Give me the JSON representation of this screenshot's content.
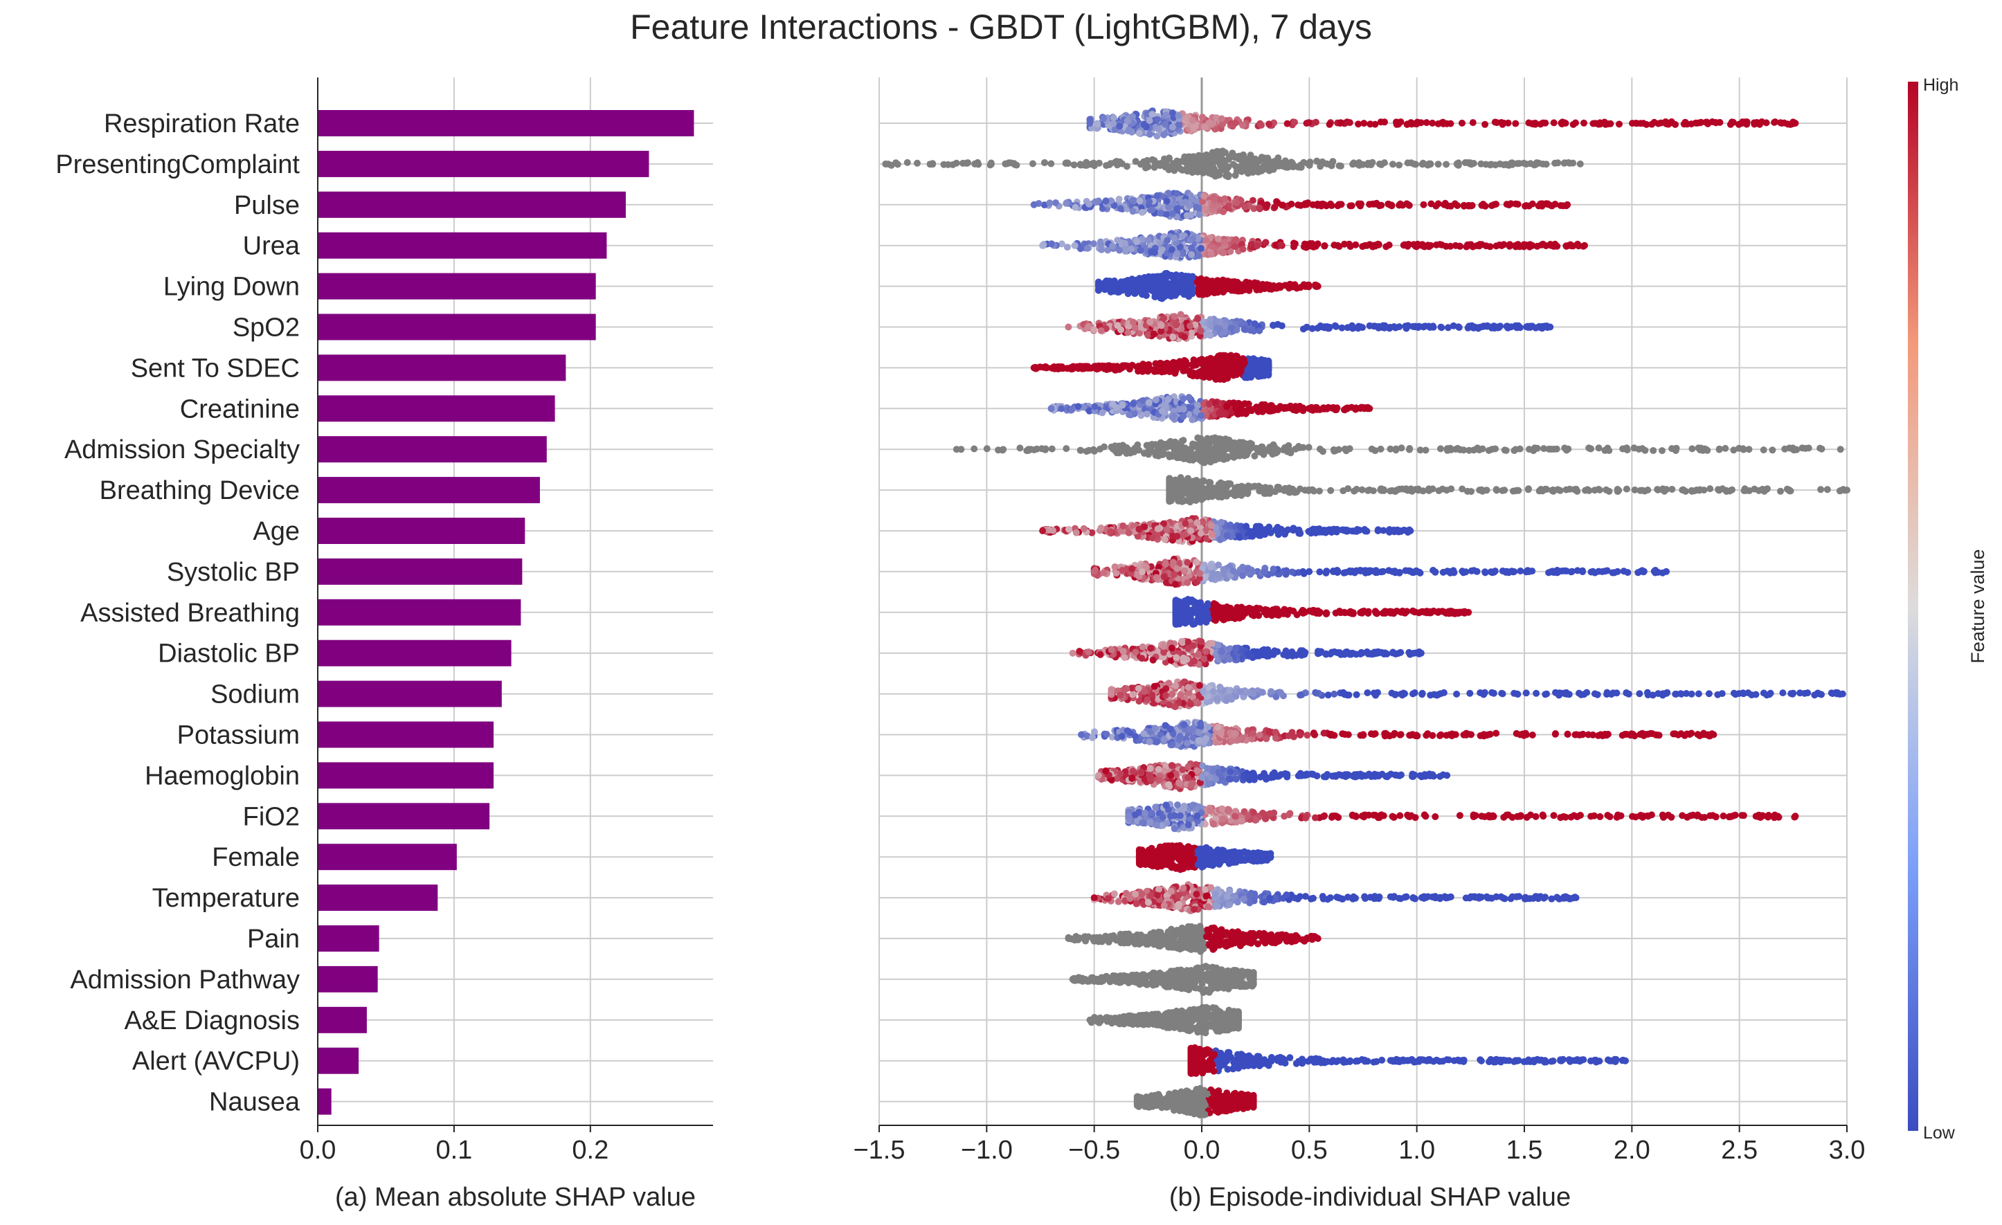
{
  "title": "Feature Interactions - GBDT (LightGBM), 7 days",
  "colors": {
    "bar": "#800080",
    "grid": "#cccccc",
    "gray_points": "#7f7f7f",
    "cmap_low": "#3b4cc0",
    "cmap_mid": "#dddcdc",
    "cmap_high": "#b40426"
  },
  "colorbar": {
    "label": "Feature value",
    "high_label": "High",
    "low_label": "Low"
  },
  "chart_data": [
    {
      "type": "bar",
      "orientation": "horizontal",
      "xlabel": "(a) Mean absolute SHAP value",
      "xlim": [
        0.0,
        0.29
      ],
      "xticks": [
        "0.0",
        "0.1",
        "0.2"
      ],
      "grid": true,
      "categories": [
        "Respiration Rate",
        "PresentingComplaint",
        "Pulse",
        "Urea",
        "Lying Down",
        "SpO2",
        "Sent To SDEC",
        "Creatinine",
        "Admission Specialty",
        "Breathing Device",
        "Age",
        "Systolic BP",
        "Assisted Breathing",
        "Diastolic BP",
        "Sodium",
        "Potassium",
        "Haemoglobin",
        "FiO2",
        "Female",
        "Temperature",
        "Pain",
        "Admission Pathway",
        "A&E Diagnosis",
        "Alert (AVCPU)",
        "Nausea"
      ],
      "values": [
        0.276,
        0.243,
        0.226,
        0.212,
        0.204,
        0.204,
        0.182,
        0.174,
        0.168,
        0.163,
        0.152,
        0.15,
        0.149,
        0.142,
        0.135,
        0.129,
        0.129,
        0.126,
        0.102,
        0.088,
        0.045,
        0.044,
        0.036,
        0.03,
        0.01
      ]
    },
    {
      "type": "scatter",
      "subtype": "beeswarm",
      "xlabel": "(b) Episode-individual SHAP value",
      "xlim": [
        -1.5,
        3.0
      ],
      "xticks": [
        "−1.5",
        "−1.0",
        "−0.5",
        "0.0",
        "0.5",
        "1.0",
        "1.5",
        "2.0",
        "2.5",
        "3.0"
      ],
      "grid": true,
      "color_by": "feature value",
      "series": [
        {
          "feature": "Respiration Rate",
          "min": -0.52,
          "max": 2.76,
          "mode": "lowhigh",
          "center": -0.2
        },
        {
          "feature": "PresentingComplaint",
          "min": -1.47,
          "max": 1.76,
          "mode": "gray",
          "center": 0.1
        },
        {
          "feature": "Pulse",
          "min": -0.78,
          "max": 1.7,
          "mode": "lowhigh",
          "center": -0.1
        },
        {
          "feature": "Urea",
          "min": -0.74,
          "max": 1.78,
          "mode": "lowhigh",
          "center": -0.1
        },
        {
          "feature": "Lying Down",
          "min": -0.48,
          "max": 0.54,
          "mode": "binary_low_left",
          "center": -0.15
        },
        {
          "feature": "SpO2",
          "min": -0.62,
          "max": 1.62,
          "mode": "highlow",
          "center": -0.1
        },
        {
          "feature": "Sent To SDEC",
          "min": -0.78,
          "max": 0.31,
          "mode": "binary_high_left",
          "center": 0.12
        },
        {
          "feature": "Creatinine",
          "min": -0.7,
          "max": 0.78,
          "mode": "lowhigh",
          "center": -0.1
        },
        {
          "feature": "Admission Specialty",
          "min": -1.14,
          "max": 2.97,
          "mode": "gray",
          "center": 0.02
        },
        {
          "feature": "Breathing Device",
          "min": -0.15,
          "max": 3.0,
          "mode": "gray",
          "center": -0.1
        },
        {
          "feature": "Age",
          "min": -0.74,
          "max": 0.97,
          "mode": "highlow",
          "center": -0.05
        },
        {
          "feature": "Systolic BP",
          "min": -0.5,
          "max": 2.16,
          "mode": "highlow",
          "center": -0.1
        },
        {
          "feature": "Assisted Breathing",
          "min": -0.12,
          "max": 1.24,
          "mode": "binary_low_left",
          "center": -0.08
        },
        {
          "feature": "Diastolic BP",
          "min": -0.6,
          "max": 1.02,
          "mode": "highlow",
          "center": -0.05
        },
        {
          "feature": "Sodium",
          "min": -0.42,
          "max": 2.98,
          "mode": "highlow",
          "center": -0.1
        },
        {
          "feature": "Potassium",
          "min": -0.56,
          "max": 2.38,
          "mode": "lowhigh",
          "center": -0.05
        },
        {
          "feature": "Haemoglobin",
          "min": -0.48,
          "max": 1.14,
          "mode": "highlow",
          "center": -0.1
        },
        {
          "feature": "FiO2",
          "min": -0.34,
          "max": 2.76,
          "mode": "lowhigh",
          "center": -0.1
        },
        {
          "feature": "Female",
          "min": -0.29,
          "max": 0.32,
          "mode": "binary_high_left",
          "center": -0.1
        },
        {
          "feature": "Temperature",
          "min": -0.5,
          "max": 1.74,
          "mode": "highlow",
          "center": -0.05
        },
        {
          "feature": "Pain",
          "min": -0.62,
          "max": 0.54,
          "mode": "gray_high_right",
          "center": -0.02
        },
        {
          "feature": "Admission Pathway",
          "min": -0.6,
          "max": 0.24,
          "mode": "gray",
          "center": 0.02
        },
        {
          "feature": "A&E Diagnosis",
          "min": -0.52,
          "max": 0.17,
          "mode": "gray",
          "center": 0.02
        },
        {
          "feature": "Alert (AVCPU)",
          "min": -0.05,
          "max": 1.97,
          "mode": "binary_high_left",
          "center": -0.02
        },
        {
          "feature": "Nausea",
          "min": -0.3,
          "max": 0.24,
          "mode": "gray_high_right",
          "center": 0.0
        }
      ]
    }
  ]
}
